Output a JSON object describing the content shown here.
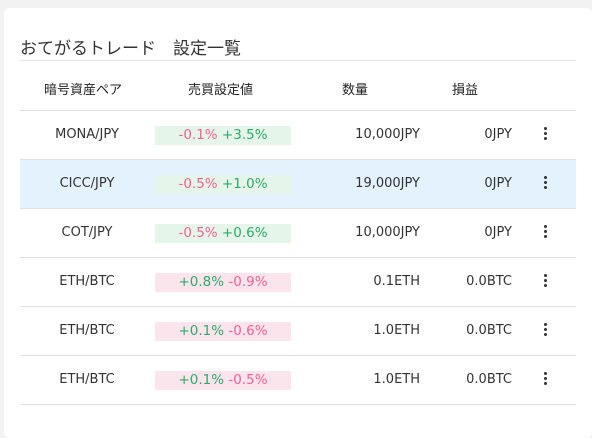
{
  "page": {
    "title": "おてがるトレード　設定一覧"
  },
  "table": {
    "headers": {
      "pair": "暗号資産ペア",
      "setting": "売買設定値",
      "quantity": "数量",
      "pnl": "損益"
    },
    "rows": [
      {
        "pair": "MONA/JPY",
        "first": "-0.1%",
        "second": "+3.5%",
        "quantity": "10,000JPY",
        "pnl": "0JPY"
      },
      {
        "pair": "CICC/JPY",
        "first": "-0.5%",
        "second": "+1.0%",
        "quantity": "19,000JPY",
        "pnl": "0JPY"
      },
      {
        "pair": "COT/JPY",
        "first": "-0.5%",
        "second": "+0.6%",
        "quantity": "10,000JPY",
        "pnl": "0JPY"
      },
      {
        "pair": "ETH/BTC",
        "first": "+0.8%",
        "second": "-0.9%",
        "quantity": "0.1ETH",
        "pnl": "0.0BTC"
      },
      {
        "pair": "ETH/BTC",
        "first": "+0.1%",
        "second": "-0.6%",
        "quantity": "1.0ETH",
        "pnl": "0.0BTC"
      },
      {
        "pair": "ETH/BTC",
        "first": "+0.1%",
        "second": "-0.5%",
        "quantity": "1.0ETH",
        "pnl": "0.0BTC"
      }
    ]
  },
  "colors": {
    "selected_row": "#e3f2fd",
    "buy_bg": "#e6f5ea",
    "sell_bg": "#fce4ec",
    "negative_text": "#f06292",
    "positive_text": "#2eaa6a"
  }
}
